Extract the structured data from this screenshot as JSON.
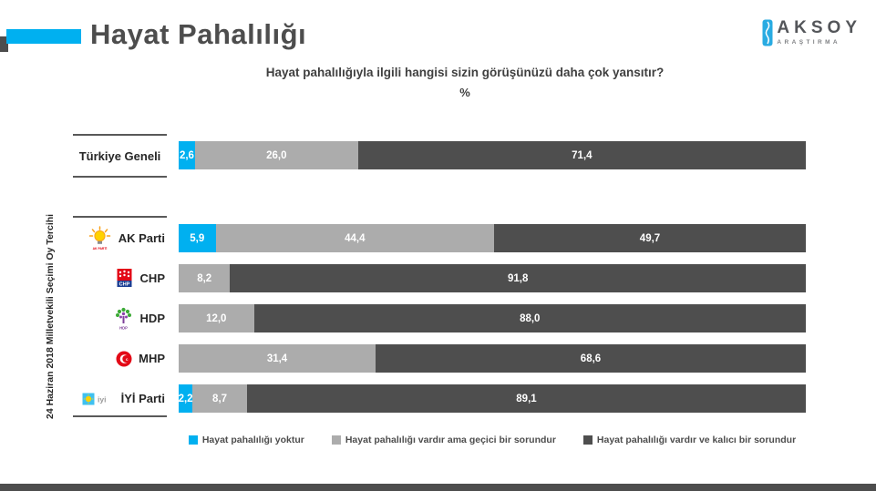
{
  "slide": {
    "title": "Hayat Pahalılığı",
    "question": "Hayat pahalılığıyla ilgili hangisi sizin görüşünüzü daha çok yansıtır?",
    "unit_label": "%"
  },
  "brand": {
    "name": "AKSOY",
    "tagline": "ARAŞTIRMA",
    "icon": "aksoy-wave-icon"
  },
  "group_axis_label": "24 Haziran 2018 Milletvekili Seçimi Oy Tercihi",
  "colors": {
    "no_inflation": "#00B0F0",
    "temporary": "#ACACAC",
    "permanent": "#4E4E4E",
    "accent_blue": "#00B0F0",
    "accent_dark": "#4D4D4D",
    "line": "#595959"
  },
  "legend": [
    {
      "label": "Hayat pahalılığı yoktur",
      "color_key": "no_inflation"
    },
    {
      "label": "Hayat pahalılığı vardır ama geçici bir sorundur",
      "color_key": "temporary"
    },
    {
      "label": "Hayat pahalılığı vardır ve kalıcı bir sorundur",
      "color_key": "permanent"
    }
  ],
  "chart_data": {
    "type": "bar",
    "orientation": "horizontal",
    "stacked": true,
    "unit": "%",
    "xlim": [
      0,
      100
    ],
    "title": "Hayat Pahalılığı",
    "subtitle": "Hayat pahalılığıyla ilgili hangisi sizin görüşünüzü daha çok yansıtır?",
    "legend_position": "bottom",
    "categories": [
      "Türkiye Geneli",
      "AK Parti",
      "CHP",
      "HDP",
      "MHP",
      "İYİ Parti"
    ],
    "series": [
      {
        "name": "Hayat pahalılığı yoktur",
        "color": "#00B0F0",
        "values": [
          2.6,
          5.9,
          0,
          0,
          0,
          2.2
        ]
      },
      {
        "name": "Hayat pahalılığı vardır ama geçici bir sorundur",
        "color": "#ACACAC",
        "values": [
          26.0,
          44.4,
          8.2,
          12.0,
          31.4,
          8.7
        ]
      },
      {
        "name": "Hayat pahalılığı vardır ve kalıcı bir sorundur",
        "color": "#4E4E4E",
        "values": [
          71.4,
          49.7,
          91.8,
          88.0,
          68.6,
          89.1
        ]
      }
    ]
  },
  "rows": [
    {
      "id": "turkiye-geneli",
      "label": "Türkiye Geneli",
      "group": "general",
      "segments": [
        {
          "series": 0,
          "value": 2.6,
          "label": "2,6"
        },
        {
          "series": 1,
          "value": 26.0,
          "label": "26,0"
        },
        {
          "series": 2,
          "value": 71.4,
          "label": "71,4"
        }
      ]
    },
    {
      "id": "akparti",
      "label": "AK Parti",
      "group": "party",
      "segments": [
        {
          "series": 0,
          "value": 5.9,
          "label": "5,9"
        },
        {
          "series": 1,
          "value": 44.4,
          "label": "44,4"
        },
        {
          "series": 2,
          "value": 49.7,
          "label": "49,7"
        }
      ]
    },
    {
      "id": "chp",
      "label": "CHP",
      "group": "party",
      "segments": [
        {
          "series": 1,
          "value": 8.2,
          "label": "8,2"
        },
        {
          "series": 2,
          "value": 91.8,
          "label": "91,8"
        }
      ]
    },
    {
      "id": "hdp",
      "label": "HDP",
      "group": "party",
      "segments": [
        {
          "series": 1,
          "value": 12.0,
          "label": "12,0"
        },
        {
          "series": 2,
          "value": 88.0,
          "label": "88,0"
        }
      ]
    },
    {
      "id": "mhp",
      "label": "MHP",
      "group": "party",
      "segments": [
        {
          "series": 1,
          "value": 31.4,
          "label": "31,4"
        },
        {
          "series": 2,
          "value": 68.6,
          "label": "68,6"
        }
      ]
    },
    {
      "id": "iyi",
      "label": "İYİ Parti",
      "group": "party",
      "segments": [
        {
          "series": 0,
          "value": 2.2,
          "label": "2,2"
        },
        {
          "series": 1,
          "value": 8.7,
          "label": "8,7"
        },
        {
          "series": 2,
          "value": 89.1,
          "label": "89,1"
        }
      ]
    }
  ]
}
